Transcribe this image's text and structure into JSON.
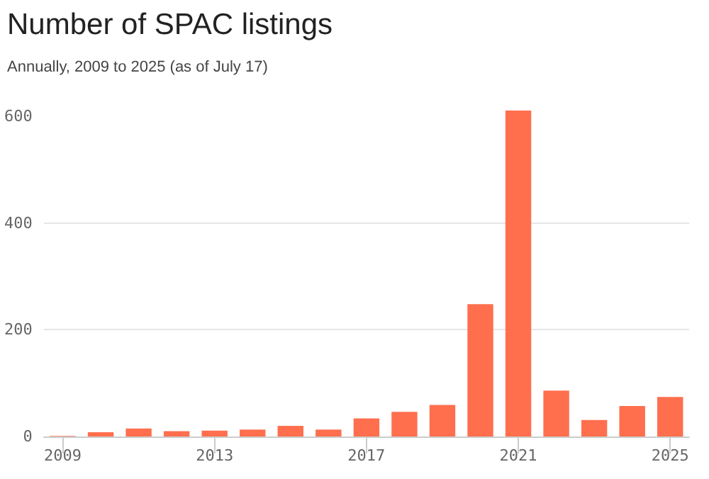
{
  "chart_data": {
    "type": "bar",
    "title": "Number of SPAC listings",
    "subtitle": "Annually, 2009 to 2025 (as of July 17)",
    "categories": [
      "2009",
      null,
      null,
      null,
      "2013",
      null,
      null,
      null,
      "2017",
      null,
      null,
      null,
      "2021",
      null,
      null,
      null,
      "2025"
    ],
    "values": [
      1,
      8,
      15,
      10,
      11,
      13,
      20,
      13,
      34,
      46,
      59,
      248,
      611,
      86,
      31,
      57,
      74
    ],
    "color": "#ff6f4e",
    "ylim": [
      0,
      611
    ],
    "yticks": [
      0,
      200,
      400,
      600
    ],
    "grid": "y"
  }
}
